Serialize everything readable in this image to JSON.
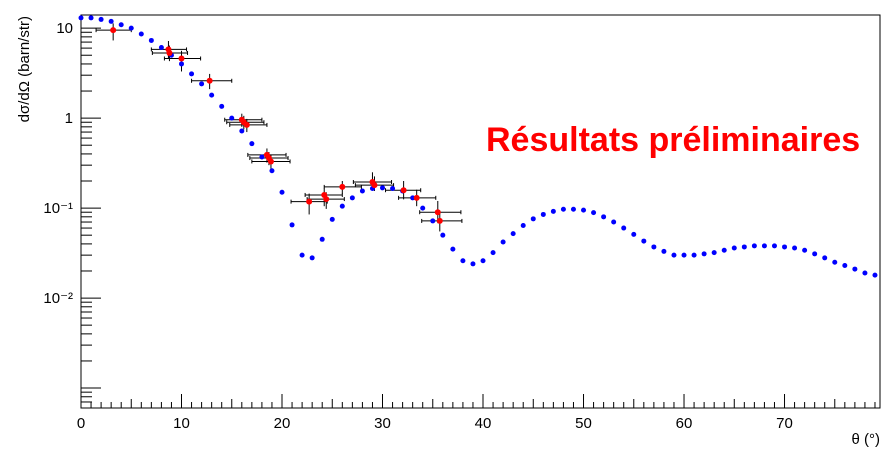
{
  "chart_data": {
    "type": "scatter",
    "xlabel": "θ (°)",
    "ylabel": "dσ/dΩ (barn/str)",
    "annotation": "Résultats préliminaires",
    "xlim": [
      0,
      79.5
    ],
    "ylim": [
      0.0006,
      14
    ],
    "yscale": "log",
    "grid": false,
    "x_ticks": [
      "0",
      "10",
      "20",
      "30",
      "40",
      "50",
      "60",
      "70"
    ],
    "y_ticks": [
      "10",
      "1",
      "10⁻¹",
      "10⁻²"
    ],
    "colors": {
      "theory": "#0000ff",
      "data": "#ff0000",
      "errorbar": "#000000",
      "annotation": "#ff0000"
    },
    "series": [
      {
        "kind": "theory",
        "points": [
          [
            0,
            13.0
          ],
          [
            1,
            13.0
          ],
          [
            2,
            12.5
          ],
          [
            3,
            11.9
          ],
          [
            4,
            10.9
          ],
          [
            5,
            10.0
          ],
          [
            6,
            8.6
          ],
          [
            7,
            7.3
          ],
          [
            8,
            6.1
          ],
          [
            9,
            5.0
          ],
          [
            10,
            4.0
          ],
          [
            11,
            3.1
          ],
          [
            12,
            2.4
          ],
          [
            13,
            1.8
          ],
          [
            14,
            1.35
          ],
          [
            15,
            1.0
          ],
          [
            16,
            0.72
          ],
          [
            17,
            0.52
          ],
          [
            18,
            0.37
          ],
          [
            19,
            0.26
          ],
          [
            20,
            0.15
          ],
          [
            21,
            0.065
          ],
          [
            22,
            0.03
          ],
          [
            23,
            0.028
          ],
          [
            24,
            0.045
          ],
          [
            25,
            0.075
          ],
          [
            26,
            0.105
          ],
          [
            27,
            0.13
          ],
          [
            28,
            0.155
          ],
          [
            29,
            0.165
          ],
          [
            30,
            0.168
          ],
          [
            31,
            0.165
          ],
          [
            32,
            0.155
          ],
          [
            33,
            0.13
          ],
          [
            34,
            0.1
          ],
          [
            35,
            0.072
          ],
          [
            36,
            0.05
          ],
          [
            37,
            0.035
          ],
          [
            38,
            0.026
          ],
          [
            39,
            0.024
          ],
          [
            40,
            0.026
          ],
          [
            41,
            0.032
          ],
          [
            42,
            0.042
          ],
          [
            43,
            0.052
          ],
          [
            44,
            0.064
          ],
          [
            45,
            0.076
          ],
          [
            46,
            0.085
          ],
          [
            47,
            0.092
          ],
          [
            48,
            0.097
          ],
          [
            49,
            0.097
          ],
          [
            50,
            0.095
          ],
          [
            51,
            0.089
          ],
          [
            52,
            0.08
          ],
          [
            53,
            0.07
          ],
          [
            54,
            0.06
          ],
          [
            55,
            0.051
          ],
          [
            56,
            0.043
          ],
          [
            57,
            0.037
          ],
          [
            58,
            0.033
          ],
          [
            59,
            0.03
          ],
          [
            60,
            0.03
          ],
          [
            61,
            0.03
          ],
          [
            62,
            0.031
          ],
          [
            63,
            0.032
          ],
          [
            64,
            0.034
          ],
          [
            65,
            0.036
          ],
          [
            66,
            0.037
          ],
          [
            67,
            0.038
          ],
          [
            68,
            0.038
          ],
          [
            69,
            0.038
          ],
          [
            70,
            0.037
          ],
          [
            71,
            0.036
          ],
          [
            72,
            0.034
          ],
          [
            73,
            0.031
          ],
          [
            74,
            0.028
          ],
          [
            75,
            0.025
          ],
          [
            76,
            0.023
          ],
          [
            77,
            0.021
          ],
          [
            78,
            0.019
          ],
          [
            79,
            0.018
          ]
        ]
      },
      {
        "kind": "data",
        "points": [
          {
            "x": 3.2,
            "y": 9.5,
            "xl": 1.5,
            "xh": 5.0,
            "yl": 7.3,
            "yh": 11.3
          },
          {
            "x": 8.7,
            "y": 5.8,
            "xl": 7.0,
            "xh": 10.5,
            "yl": 4.6,
            "yh": 7.2
          },
          {
            "x": 8.8,
            "y": 5.3,
            "xl": 7.1,
            "xh": 10.6,
            "yl": 4.3,
            "yh": 6.4
          },
          {
            "x": 10.0,
            "y": 4.6,
            "xl": 8.3,
            "xh": 11.9,
            "yl": 3.3,
            "yh": 5.6
          },
          {
            "x": 12.8,
            "y": 2.6,
            "xl": 11.0,
            "xh": 15.0,
            "yl": 2.1,
            "yh": 3.1
          },
          {
            "x": 16.0,
            "y": 0.96,
            "xl": 14.3,
            "xh": 18.0,
            "yl": 0.8,
            "yh": 1.12
          },
          {
            "x": 16.2,
            "y": 0.9,
            "xl": 14.5,
            "xh": 18.2,
            "yl": 0.75,
            "yh": 1.06
          },
          {
            "x": 16.5,
            "y": 0.84,
            "xl": 14.8,
            "xh": 18.5,
            "yl": 0.7,
            "yh": 0.98
          },
          {
            "x": 18.5,
            "y": 0.39,
            "xl": 16.6,
            "xh": 20.4,
            "yl": 0.32,
            "yh": 0.46
          },
          {
            "x": 18.7,
            "y": 0.36,
            "xl": 16.8,
            "xh": 20.6,
            "yl": 0.3,
            "yh": 0.42
          },
          {
            "x": 18.9,
            "y": 0.33,
            "xl": 17.0,
            "xh": 20.8,
            "yl": 0.27,
            "yh": 0.39
          },
          {
            "x": 22.7,
            "y": 0.118,
            "xl": 20.9,
            "xh": 24.5,
            "yl": 0.085,
            "yh": 0.145
          },
          {
            "x": 24.2,
            "y": 0.14,
            "xl": 22.3,
            "xh": 26.0,
            "yl": 0.105,
            "yh": 0.165
          },
          {
            "x": 24.4,
            "y": 0.126,
            "xl": 22.5,
            "xh": 26.2,
            "yl": 0.098,
            "yh": 0.15
          },
          {
            "x": 26.0,
            "y": 0.172,
            "xl": 24.2,
            "xh": 27.9,
            "yl": 0.145,
            "yh": 0.2
          },
          {
            "x": 29.0,
            "y": 0.195,
            "xl": 27.1,
            "xh": 30.9,
            "yl": 0.165,
            "yh": 0.25
          },
          {
            "x": 29.2,
            "y": 0.18,
            "xl": 27.3,
            "xh": 31.1,
            "yl": 0.155,
            "yh": 0.225
          },
          {
            "x": 32.1,
            "y": 0.158,
            "xl": 30.3,
            "xh": 33.8,
            "yl": 0.125,
            "yh": 0.2
          },
          {
            "x": 33.4,
            "y": 0.13,
            "xl": 31.6,
            "xh": 35.3,
            "yl": 0.105,
            "yh": 0.16
          },
          {
            "x": 35.5,
            "y": 0.09,
            "xl": 33.7,
            "xh": 37.8,
            "yl": 0.068,
            "yh": 0.12
          },
          {
            "x": 35.7,
            "y": 0.072,
            "xl": 33.9,
            "xh": 37.9,
            "yl": 0.055,
            "yh": 0.09
          }
        ]
      }
    ]
  }
}
